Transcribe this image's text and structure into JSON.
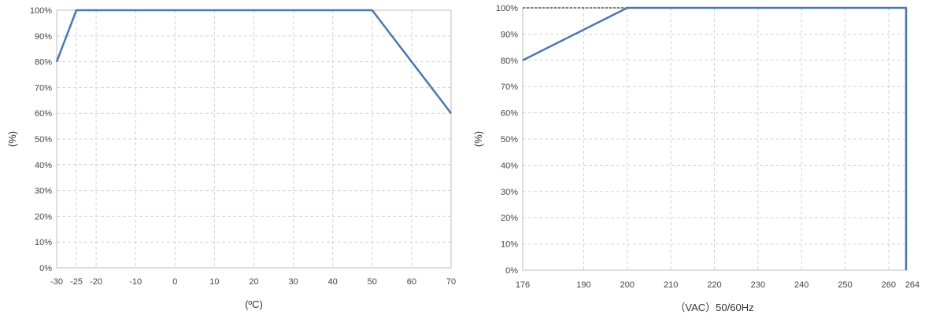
{
  "colors": {
    "series": "#4a78ad",
    "grid": "#d4d4d4",
    "frame": "#bdbdbd"
  },
  "chart_data": [
    {
      "type": "line",
      "title": "",
      "xlabel": "(ºC)",
      "ylabel": "(%)",
      "x_ticks": [
        "-30",
        "-25",
        "-20",
        "-10",
        "0",
        "10",
        "20",
        "30",
        "40",
        "50",
        "60",
        "70"
      ],
      "y_ticks": [
        "0%",
        "10%",
        "20%",
        "30%",
        "40%",
        "50%",
        "60%",
        "70%",
        "80%",
        "90%",
        "100%"
      ],
      "xlim": [
        -30,
        70
      ],
      "ylim": [
        0,
        100
      ],
      "grid": true,
      "series": [
        {
          "x": [
            -30,
            -25,
            50,
            70
          ],
          "y": [
            80,
            100,
            100,
            60
          ]
        }
      ]
    },
    {
      "type": "line",
      "title": "",
      "xlabel": "（VAC）50/60Hz",
      "ylabel": "(%)",
      "x_ticks": [
        "176",
        "190",
        "200",
        "210",
        "220",
        "230",
        "240",
        "250",
        "260",
        "264"
      ],
      "y_ticks": [
        "0%",
        "10%",
        "20%",
        "30%",
        "40%",
        "50%",
        "60%",
        "70%",
        "80%",
        "90%",
        "100%"
      ],
      "xlim": [
        176,
        264
      ],
      "ylim": [
        0,
        100
      ],
      "grid": true,
      "series": [
        {
          "x": [
            176,
            200,
            264,
            264
          ],
          "y": [
            80,
            100,
            100,
            0
          ]
        }
      ],
      "reference_line": {
        "x": [
          176,
          200
        ],
        "y": [
          100,
          100
        ]
      }
    }
  ]
}
